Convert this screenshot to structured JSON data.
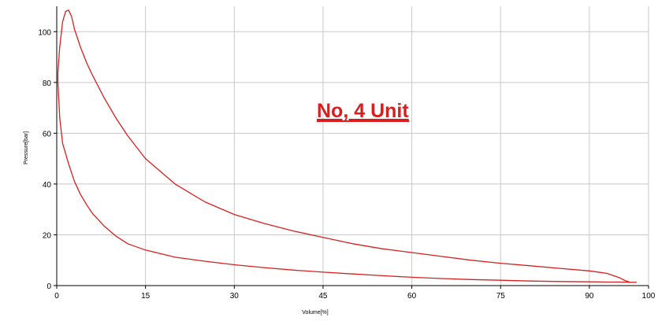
{
  "chart_data": {
    "type": "line",
    "title": "",
    "xlabel": "Volume[%]",
    "ylabel": "Pressure[bar]",
    "xlim": [
      0,
      100
    ],
    "ylim": [
      0,
      110
    ],
    "x_ticks": [
      0,
      15,
      30,
      45,
      60,
      75,
      90,
      100
    ],
    "y_ticks": [
      0,
      20,
      40,
      60,
      80,
      100
    ],
    "grid": true,
    "annotation": "No, 4 Unit",
    "colors": {
      "line": "#d62020",
      "grid": "#c8c8c8",
      "annotation": "#d81e1e"
    },
    "series": [
      {
        "x": [
          97,
          96,
          95,
          93,
          90,
          85,
          80,
          75,
          70,
          65,
          60,
          55,
          50,
          45,
          40,
          35,
          30,
          25,
          20,
          15,
          12,
          10,
          8,
          6,
          5,
          4,
          3,
          2.5,
          2,
          1.5,
          1,
          0.5,
          0.2,
          0.2,
          0.5,
          1,
          2,
          3,
          4,
          5,
          6,
          8,
          10,
          12,
          15,
          20,
          25,
          30,
          35,
          40,
          45,
          50,
          55,
          60,
          65,
          70,
          75,
          80,
          85,
          90,
          93,
          95,
          97,
          98
        ],
        "y": [
          1.2,
          2,
          3.2,
          4.8,
          5.8,
          6.8,
          7.8,
          8.8,
          10,
          11.5,
          13,
          14.5,
          16.5,
          19,
          21.5,
          24.5,
          28,
          33,
          40,
          50,
          59,
          66,
          74,
          83,
          88,
          94,
          101,
          106,
          108.5,
          108,
          104,
          94,
          84,
          80,
          66,
          56,
          48,
          41,
          36,
          32,
          28.5,
          23.5,
          19.5,
          16.5,
          14,
          11.2,
          9.6,
          8.2,
          7.1,
          6.1,
          5.3,
          4.6,
          3.9,
          3.3,
          2.8,
          2.4,
          2.1,
          1.8,
          1.6,
          1.5,
          1.4,
          1.4,
          1.3,
          1.3
        ]
      }
    ]
  }
}
